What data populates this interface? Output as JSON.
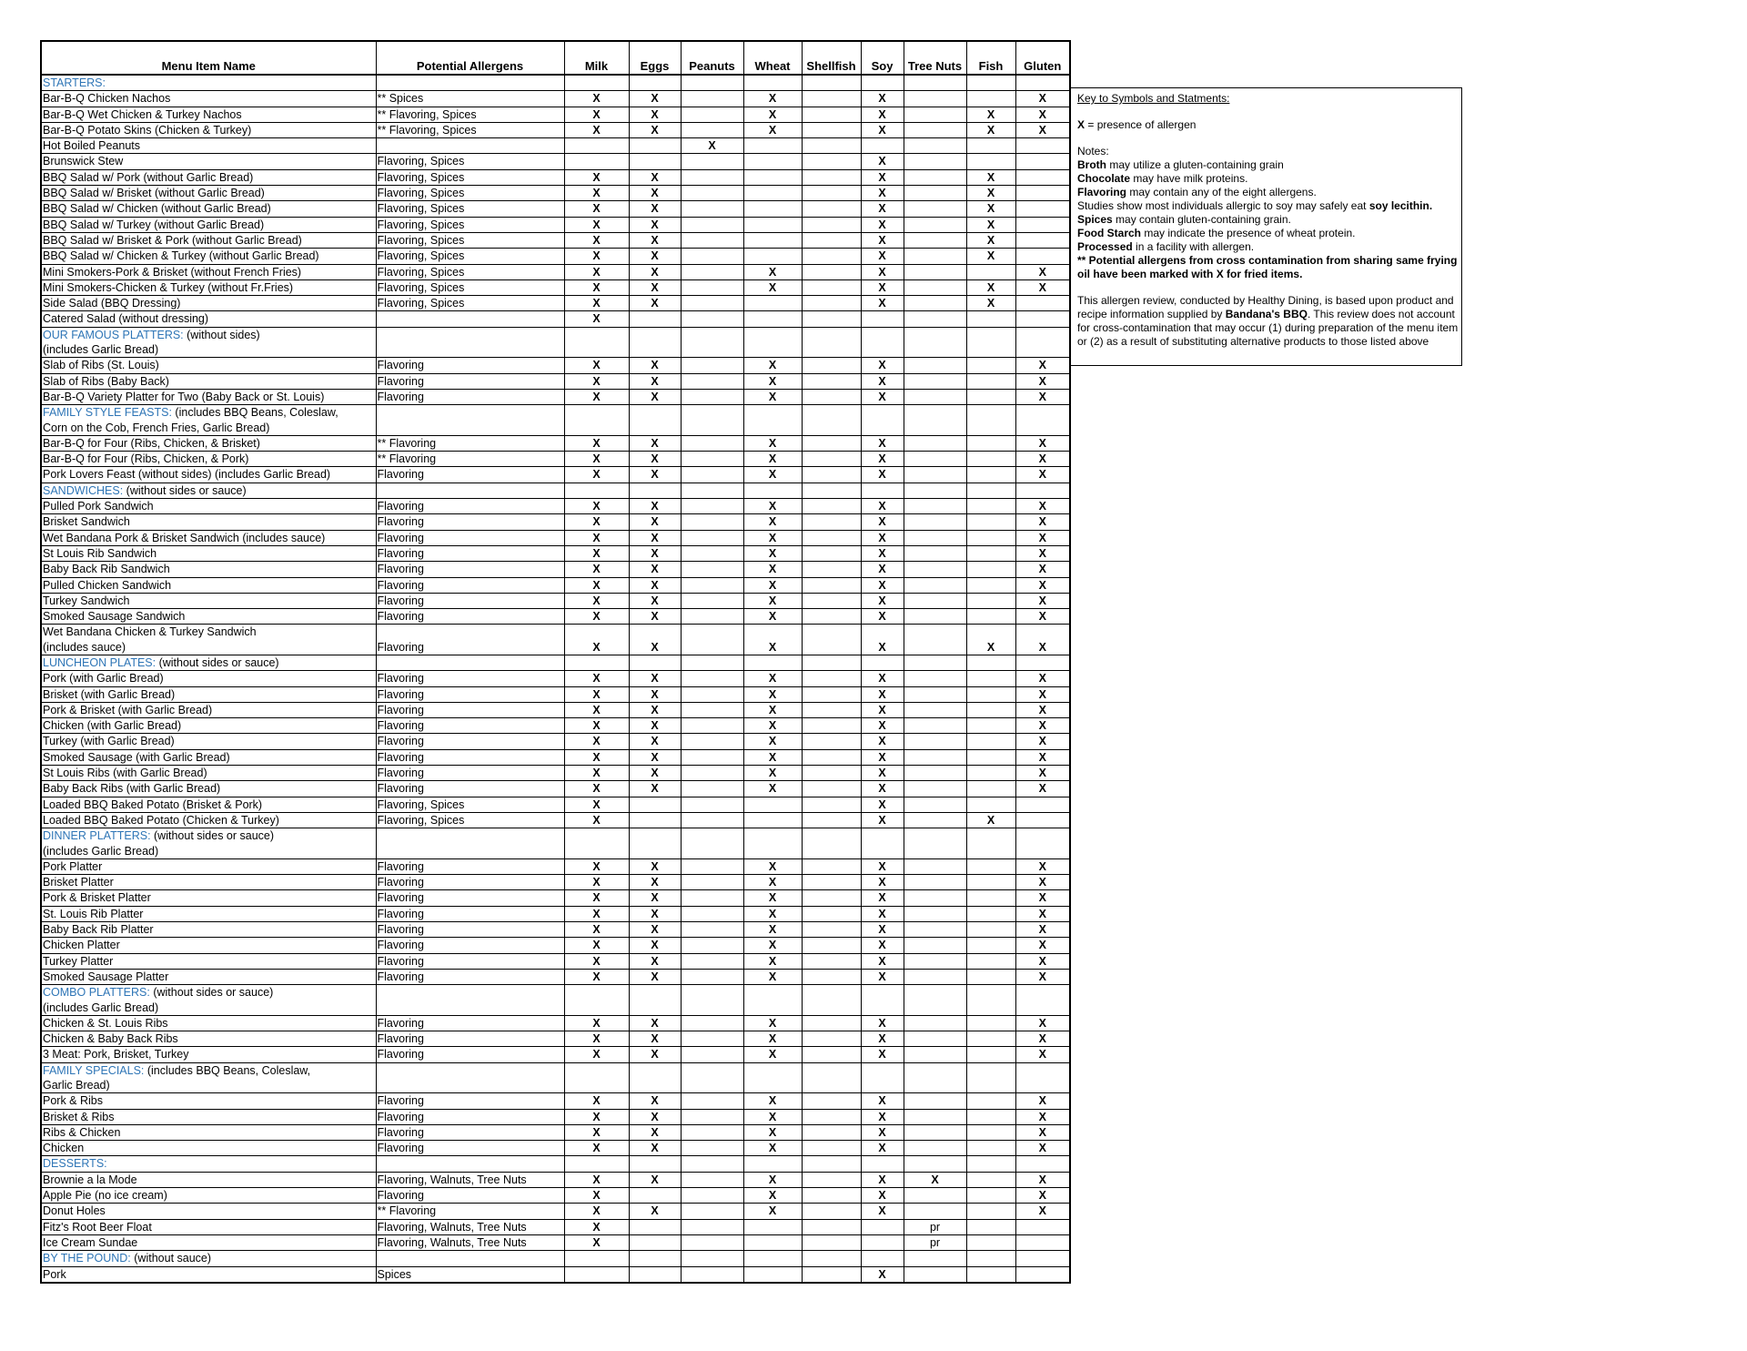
{
  "columns": [
    "Menu Item Name",
    "Potential Allergens",
    "Milk",
    "Eggs",
    "Peanuts",
    "Wheat",
    "Shellfish",
    "Soy",
    "Tree Nuts",
    "Fish",
    "Gluten"
  ],
  "rows": [
    {
      "section": "STARTERS:",
      "note": ""
    },
    {
      "name": "Bar-B-Q Chicken Nachos",
      "allergens": "** Spices",
      "marks": [
        "X",
        "X",
        "",
        "X",
        "",
        "X",
        "",
        "",
        "X"
      ]
    },
    {
      "name": "Bar-B-Q Wet Chicken & Turkey Nachos",
      "allergens": "** Flavoring, Spices",
      "marks": [
        "X",
        "X",
        "",
        "X",
        "",
        "X",
        "",
        "X",
        "X"
      ]
    },
    {
      "name": "Bar-B-Q Potato Skins (Chicken & Turkey)",
      "allergens": "** Flavoring, Spices",
      "marks": [
        "X",
        "X",
        "",
        "X",
        "",
        "X",
        "",
        "X",
        "X"
      ]
    },
    {
      "name": "Hot Boiled Peanuts",
      "allergens": "",
      "marks": [
        "",
        "",
        "X",
        "",
        "",
        "",
        "",
        "",
        ""
      ]
    },
    {
      "name": "Brunswick Stew",
      "allergens": "Flavoring, Spices",
      "marks": [
        "",
        "",
        "",
        "",
        "",
        "X",
        "",
        "",
        ""
      ]
    },
    {
      "name": "BBQ Salad w/ Pork (without Garlic Bread)",
      "allergens": "Flavoring, Spices",
      "marks": [
        "X",
        "X",
        "",
        "",
        "",
        "X",
        "",
        "X",
        ""
      ]
    },
    {
      "name": "BBQ Salad w/ Brisket (without Garlic Bread)",
      "allergens": "Flavoring, Spices",
      "marks": [
        "X",
        "X",
        "",
        "",
        "",
        "X",
        "",
        "X",
        ""
      ]
    },
    {
      "name": "BBQ Salad w/ Chicken (without Garlic Bread)",
      "allergens": "Flavoring, Spices",
      "marks": [
        "X",
        "X",
        "",
        "",
        "",
        "X",
        "",
        "X",
        ""
      ]
    },
    {
      "name": "BBQ Salad w/ Turkey (without Garlic Bread)",
      "allergens": "Flavoring, Spices",
      "marks": [
        "X",
        "X",
        "",
        "",
        "",
        "X",
        "",
        "X",
        ""
      ]
    },
    {
      "name": "BBQ Salad w/ Brisket & Pork (without Garlic Bread)",
      "allergens": "Flavoring, Spices",
      "marks": [
        "X",
        "X",
        "",
        "",
        "",
        "X",
        "",
        "X",
        ""
      ]
    },
    {
      "name": "BBQ Salad w/ Chicken & Turkey (without Garlic Bread)",
      "allergens": "Flavoring, Spices",
      "marks": [
        "X",
        "X",
        "",
        "",
        "",
        "X",
        "",
        "X",
        ""
      ]
    },
    {
      "name": "Mini Smokers-Pork & Brisket (without French Fries)",
      "allergens": "Flavoring, Spices",
      "marks": [
        "X",
        "X",
        "",
        "X",
        "",
        "X",
        "",
        "",
        "X"
      ]
    },
    {
      "name": "Mini Smokers-Chicken & Turkey (without Fr.Fries)",
      "allergens": "Flavoring, Spices",
      "marks": [
        "X",
        "X",
        "",
        "X",
        "",
        "X",
        "",
        "X",
        "X"
      ]
    },
    {
      "name": "Side Salad (BBQ Dressing)",
      "allergens": "Flavoring, Spices",
      "marks": [
        "X",
        "X",
        "",
        "",
        "",
        "X",
        "",
        "X",
        ""
      ]
    },
    {
      "name": "Catered Salad (without dressing)",
      "allergens": "",
      "marks": [
        "X",
        "",
        "",
        "",
        "",
        "",
        "",
        "",
        ""
      ]
    },
    {
      "section": "OUR FAMOUS PLATTERS:",
      "note": " (without sides)\n(includes Garlic Bread)"
    },
    {
      "name": "Slab of Ribs (St. Louis)",
      "allergens": "Flavoring",
      "marks": [
        "X",
        "X",
        "",
        "X",
        "",
        "X",
        "",
        "",
        "X"
      ]
    },
    {
      "name": "Slab of Ribs (Baby Back)",
      "allergens": "Flavoring",
      "marks": [
        "X",
        "X",
        "",
        "X",
        "",
        "X",
        "",
        "",
        "X"
      ]
    },
    {
      "name": "Bar-B-Q Variety Platter for Two (Baby Back or St. Louis)",
      "allergens": "Flavoring",
      "marks": [
        "X",
        "X",
        "",
        "X",
        "",
        "X",
        "",
        "",
        "X"
      ]
    },
    {
      "section": "FAMILY STYLE FEASTS:",
      "note": " (includes BBQ Beans, Coleslaw,\nCorn on the Cob, French Fries, Garlic Bread)"
    },
    {
      "name": "Bar-B-Q for Four (Ribs, Chicken, & Brisket)",
      "allergens": "** Flavoring",
      "marks": [
        "X",
        "X",
        "",
        "X",
        "",
        "X",
        "",
        "",
        "X"
      ]
    },
    {
      "name": "Bar-B-Q for Four (Ribs, Chicken, & Pork)",
      "allergens": "** Flavoring",
      "marks": [
        "X",
        "X",
        "",
        "X",
        "",
        "X",
        "",
        "",
        "X"
      ]
    },
    {
      "name": "Pork Lovers Feast (without sides) (includes Garlic Bread)",
      "allergens": "Flavoring",
      "marks": [
        "X",
        "X",
        "",
        "X",
        "",
        "X",
        "",
        "",
        "X"
      ]
    },
    {
      "section": "SANDWICHES:",
      "note": " (without sides or sauce)"
    },
    {
      "name": "Pulled Pork Sandwich",
      "allergens": "Flavoring",
      "marks": [
        "X",
        "X",
        "",
        "X",
        "",
        "X",
        "",
        "",
        "X"
      ]
    },
    {
      "name": "Brisket Sandwich",
      "allergens": "Flavoring",
      "marks": [
        "X",
        "X",
        "",
        "X",
        "",
        "X",
        "",
        "",
        "X"
      ]
    },
    {
      "name": "Wet Bandana Pork & Brisket Sandwich (includes sauce)",
      "allergens": "Flavoring",
      "marks": [
        "X",
        "X",
        "",
        "X",
        "",
        "X",
        "",
        "",
        "X"
      ]
    },
    {
      "name": "St Louis Rib Sandwich",
      "allergens": "Flavoring",
      "marks": [
        "X",
        "X",
        "",
        "X",
        "",
        "X",
        "",
        "",
        "X"
      ]
    },
    {
      "name": "Baby Back Rib Sandwich",
      "allergens": "Flavoring",
      "marks": [
        "X",
        "X",
        "",
        "X",
        "",
        "X",
        "",
        "",
        "X"
      ]
    },
    {
      "name": "Pulled Chicken Sandwich",
      "allergens": "Flavoring",
      "marks": [
        "X",
        "X",
        "",
        "X",
        "",
        "X",
        "",
        "",
        "X"
      ]
    },
    {
      "name": "Turkey Sandwich",
      "allergens": "Flavoring",
      "marks": [
        "X",
        "X",
        "",
        "X",
        "",
        "X",
        "",
        "",
        "X"
      ]
    },
    {
      "name": "Smoked Sausage Sandwich",
      "allergens": "Flavoring",
      "marks": [
        "X",
        "X",
        "",
        "X",
        "",
        "X",
        "",
        "",
        "X"
      ]
    },
    {
      "name": "Wet Bandana Chicken & Turkey Sandwich\n(includes sauce)",
      "allergens": "Flavoring",
      "marks": [
        "X",
        "X",
        "",
        "X",
        "",
        "X",
        "",
        "X",
        "X"
      ]
    },
    {
      "section": "LUNCHEON PLATES:",
      "note": " (without sides or sauce)"
    },
    {
      "name": "Pork (with Garlic Bread)",
      "allergens": "Flavoring",
      "marks": [
        "X",
        "X",
        "",
        "X",
        "",
        "X",
        "",
        "",
        "X"
      ]
    },
    {
      "name": "Brisket (with Garlic Bread)",
      "allergens": "Flavoring",
      "marks": [
        "X",
        "X",
        "",
        "X",
        "",
        "X",
        "",
        "",
        "X"
      ]
    },
    {
      "name": "Pork & Brisket (with Garlic Bread)",
      "allergens": "Flavoring",
      "marks": [
        "X",
        "X",
        "",
        "X",
        "",
        "X",
        "",
        "",
        "X"
      ]
    },
    {
      "name": "Chicken (with Garlic Bread)",
      "allergens": "Flavoring",
      "marks": [
        "X",
        "X",
        "",
        "X",
        "",
        "X",
        "",
        "",
        "X"
      ]
    },
    {
      "name": "Turkey (with Garlic Bread)",
      "allergens": "Flavoring",
      "marks": [
        "X",
        "X",
        "",
        "X",
        "",
        "X",
        "",
        "",
        "X"
      ]
    },
    {
      "name": "Smoked Sausage (with Garlic Bread)",
      "allergens": "Flavoring",
      "marks": [
        "X",
        "X",
        "",
        "X",
        "",
        "X",
        "",
        "",
        "X"
      ]
    },
    {
      "name": "St Louis Ribs (with Garlic Bread)",
      "allergens": "Flavoring",
      "marks": [
        "X",
        "X",
        "",
        "X",
        "",
        "X",
        "",
        "",
        "X"
      ]
    },
    {
      "name": "Baby Back Ribs (with Garlic Bread)",
      "allergens": "Flavoring",
      "marks": [
        "X",
        "X",
        "",
        "X",
        "",
        "X",
        "",
        "",
        "X"
      ]
    },
    {
      "name": "Loaded BBQ Baked Potato (Brisket & Pork)",
      "allergens": "Flavoring, Spices",
      "marks": [
        "X",
        "",
        "",
        "",
        "",
        "X",
        "",
        "",
        ""
      ]
    },
    {
      "name": "Loaded BBQ Baked Potato (Chicken & Turkey)",
      "allergens": "Flavoring, Spices",
      "marks": [
        "X",
        "",
        "",
        "",
        "",
        "X",
        "",
        "X",
        ""
      ]
    },
    {
      "section": "DINNER PLATTERS:",
      "note": " (without sides or sauce)\n(includes Garlic Bread)"
    },
    {
      "name": "Pork Platter",
      "allergens": "Flavoring",
      "marks": [
        "X",
        "X",
        "",
        "X",
        "",
        "X",
        "",
        "",
        "X"
      ]
    },
    {
      "name": "Brisket Platter",
      "allergens": "Flavoring",
      "marks": [
        "X",
        "X",
        "",
        "X",
        "",
        "X",
        "",
        "",
        "X"
      ]
    },
    {
      "name": "Pork & Brisket Platter",
      "allergens": "Flavoring",
      "marks": [
        "X",
        "X",
        "",
        "X",
        "",
        "X",
        "",
        "",
        "X"
      ]
    },
    {
      "name": "St. Louis Rib Platter",
      "allergens": "Flavoring",
      "marks": [
        "X",
        "X",
        "",
        "X",
        "",
        "X",
        "",
        "",
        "X"
      ]
    },
    {
      "name": "Baby Back Rib Platter",
      "allergens": "Flavoring",
      "marks": [
        "X",
        "X",
        "",
        "X",
        "",
        "X",
        "",
        "",
        "X"
      ]
    },
    {
      "name": "Chicken Platter",
      "allergens": "Flavoring",
      "marks": [
        "X",
        "X",
        "",
        "X",
        "",
        "X",
        "",
        "",
        "X"
      ]
    },
    {
      "name": "Turkey Platter",
      "allergens": "Flavoring",
      "marks": [
        "X",
        "X",
        "",
        "X",
        "",
        "X",
        "",
        "",
        "X"
      ]
    },
    {
      "name": "Smoked Sausage Platter",
      "allergens": "Flavoring",
      "marks": [
        "X",
        "X",
        "",
        "X",
        "",
        "X",
        "",
        "",
        "X"
      ]
    },
    {
      "section": "COMBO PLATTERS:",
      "note": " (without sides or sauce)\n(includes Garlic Bread)"
    },
    {
      "name": "Chicken & St. Louis Ribs",
      "allergens": "Flavoring",
      "marks": [
        "X",
        "X",
        "",
        "X",
        "",
        "X",
        "",
        "",
        "X"
      ]
    },
    {
      "name": "Chicken & Baby Back Ribs",
      "allergens": "Flavoring",
      "marks": [
        "X",
        "X",
        "",
        "X",
        "",
        "X",
        "",
        "",
        "X"
      ]
    },
    {
      "name": "3 Meat: Pork, Brisket, Turkey",
      "allergens": "Flavoring",
      "marks": [
        "X",
        "X",
        "",
        "X",
        "",
        "X",
        "",
        "",
        "X"
      ]
    },
    {
      "section": "FAMILY SPECIALS:",
      "note": " (includes BBQ Beans, Coleslaw,\nGarlic Bread)"
    },
    {
      "name": "Pork & Ribs",
      "allergens": "Flavoring",
      "marks": [
        "X",
        "X",
        "",
        "X",
        "",
        "X",
        "",
        "",
        "X"
      ]
    },
    {
      "name": "Brisket & Ribs",
      "allergens": "Flavoring",
      "marks": [
        "X",
        "X",
        "",
        "X",
        "",
        "X",
        "",
        "",
        "X"
      ]
    },
    {
      "name": "Ribs & Chicken",
      "allergens": "Flavoring",
      "marks": [
        "X",
        "X",
        "",
        "X",
        "",
        "X",
        "",
        "",
        "X"
      ]
    },
    {
      "name": "Chicken",
      "allergens": "Flavoring",
      "marks": [
        "X",
        "X",
        "",
        "X",
        "",
        "X",
        "",
        "",
        "X"
      ]
    },
    {
      "section": "DESSERTS:",
      "note": ""
    },
    {
      "name": "Brownie a la Mode",
      "allergens": "Flavoring, Walnuts, Tree Nuts",
      "marks": [
        "X",
        "X",
        "",
        "X",
        "",
        "X",
        "X",
        "",
        "X"
      ]
    },
    {
      "name": "Apple Pie (no ice cream)",
      "allergens": "Flavoring",
      "marks": [
        "X",
        "",
        "",
        "X",
        "",
        "X",
        "",
        "",
        "X"
      ]
    },
    {
      "name": "Donut Holes",
      "allergens": "** Flavoring",
      "marks": [
        "X",
        "X",
        "",
        "X",
        "",
        "X",
        "",
        "",
        "X"
      ]
    },
    {
      "name": "Fitz's Root Beer Float",
      "allergens": "Flavoring, Walnuts, Tree Nuts",
      "marks": [
        "X",
        "",
        "",
        "",
        "",
        "",
        "pr",
        "",
        ""
      ]
    },
    {
      "name": "Ice Cream Sundae",
      "allergens": "Flavoring, Walnuts, Tree Nuts",
      "marks": [
        "X",
        "",
        "",
        "",
        "",
        "",
        "pr",
        "",
        ""
      ]
    },
    {
      "section": "BY THE POUND:",
      "note": " (without sauce)"
    },
    {
      "name": "Pork",
      "allergens": "Spices",
      "marks": [
        "",
        "",
        "",
        "",
        "",
        "X",
        "",
        "",
        ""
      ]
    }
  ],
  "key": {
    "title": "Key to Symbols and Statments:",
    "x_symbol": "X",
    "x_text": " = presence of allergen",
    "notes_label": "Notes:",
    "notes": [
      {
        "bold": "Broth",
        "text": " may utilize a gluten-containing grain"
      },
      {
        "bold": "Chocolate",
        "text": " may have milk proteins."
      },
      {
        "bold": "Flavoring",
        "text": " may contain any of the eight allergens."
      },
      {
        "text": "Studies show most individuals allergic to soy may safely eat ",
        "bold_after": "soy lecithin."
      },
      {
        "bold": "Spices",
        "text": " may contain gluten-containing grain."
      },
      {
        "bold": "Food Starch",
        "text": " may indicate the presence of wheat protein."
      },
      {
        "bold": "Processed",
        "text": " in a facility with allergen."
      },
      {
        "bold": "** Potential allergens from cross contamination from sharing same frying oil have been marked with X for fried items.",
        "text": ""
      }
    ],
    "disclaimer_pre": "This allergen review, conducted by Healthy Dining, is based upon product and recipe information supplied by ",
    "disclaimer_brand": "Bandana's BBQ",
    "disclaimer_post": ". This review does not account for cross-contamination that may occur (1) during preparation of the menu item or (2) as a result of substituting alternative products to those listed above"
  },
  "colors": {
    "section_heading": "#2e75b6"
  }
}
